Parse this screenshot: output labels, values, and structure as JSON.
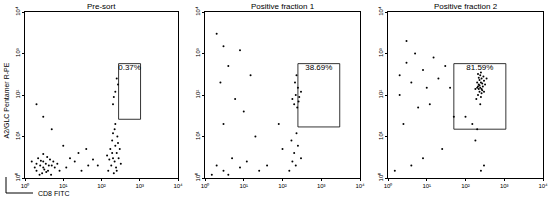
{
  "chart_data": [
    {
      "type": "scatter",
      "title": "Pre-sort",
      "color": "#000000",
      "marker": "dot",
      "log": true,
      "x_label": "CD8 FITC",
      "y_label": "A2/GLC Pentamer R-PE",
      "xlim": [
        1,
        10000
      ],
      "ylim": [
        1,
        10000
      ],
      "xticks": [
        {
          "value": 1,
          "label": "10⁰"
        },
        {
          "value": 10,
          "label": "10¹"
        },
        {
          "value": 100,
          "label": "10²"
        },
        {
          "value": 1000,
          "label": "10³"
        },
        {
          "value": 10000,
          "label": "10⁴"
        }
      ],
      "yticks": [
        {
          "value": 1,
          "label": "10⁰"
        },
        {
          "value": 10,
          "label": "10¹"
        },
        {
          "value": 100,
          "label": "10²"
        },
        {
          "value": 1000,
          "label": "10³"
        },
        {
          "value": 10000,
          "label": "10⁴"
        }
      ],
      "x": [
        2,
        2.5,
        3,
        3,
        2.2,
        4,
        3.5,
        4.5,
        5,
        2,
        2.8,
        3.8,
        6,
        5.5,
        1.8,
        3.2,
        4.2,
        2.6,
        7,
        8,
        1.5,
        3,
        4.8,
        2.4,
        3.6,
        12,
        20,
        30,
        45,
        15,
        60,
        25,
        80,
        10,
        40,
        150,
        180,
        200,
        220,
        250,
        170,
        190,
        230,
        260,
        210,
        240,
        280,
        300,
        200,
        160,
        220,
        270,
        190,
        320,
        140,
        230,
        250,
        200,
        230,
        250,
        210,
        270,
        3,
        5,
        2
      ],
      "values": [
        1.5,
        2,
        1.8,
        2.5,
        3,
        1.5,
        2.2,
        2.8,
        2,
        2.2,
        1.3,
        3.2,
        1.8,
        2.5,
        1.8,
        1.6,
        2,
        2.6,
        2.2,
        1.5,
        2.5,
        3.8,
        1.2,
        1.2,
        1.4,
        1.8,
        2.5,
        1.5,
        2,
        3,
        2.8,
        4,
        2,
        6,
        5,
        1.5,
        2,
        3,
        2.5,
        4,
        5,
        8,
        6,
        10,
        1.3,
        1.8,
        3,
        5,
        12,
        2.8,
        15,
        7,
        4,
        2.2,
        3.5,
        20,
        1.5,
        60,
        120,
        250,
        90,
        180,
        30,
        15,
        60
      ],
      "gate": {
        "x": [
          280,
          1050
        ],
        "y": [
          26,
          570
        ],
        "label": "0.37%"
      }
    },
    {
      "type": "scatter",
      "title": "Positive fraction 1",
      "color": "#000000",
      "marker": "dot",
      "log": true,
      "xlim": [
        1,
        10000
      ],
      "ylim": [
        1,
        10000
      ],
      "xticks": [
        {
          "value": 1,
          "label": "10⁰"
        },
        {
          "value": 10,
          "label": "10¹"
        },
        {
          "value": 100,
          "label": "10²"
        },
        {
          "value": 1000,
          "label": "10³"
        },
        {
          "value": 10000,
          "label": "10⁴"
        }
      ],
      "yticks": [
        {
          "value": 1,
          "label": "10⁰"
        },
        {
          "value": 10,
          "label": "10¹"
        },
        {
          "value": 100,
          "label": "10²"
        },
        {
          "value": 1000,
          "label": "10³"
        },
        {
          "value": 10000,
          "label": "10⁴"
        }
      ],
      "x": [
        1.5,
        2,
        3,
        5,
        8,
        12,
        25,
        40,
        4,
        2,
        3,
        4,
        2.5,
        6,
        10,
        15,
        8,
        3,
        20,
        150,
        180,
        200,
        220,
        250,
        300,
        170,
        230,
        200,
        220,
        250,
        180,
        270,
        210,
        240,
        300,
        230,
        260,
        100,
        80
      ],
      "values": [
        1.2,
        2,
        1.5,
        3,
        1.8,
        2.5,
        1.5,
        2,
        1.2,
        3000,
        1500,
        500,
        200,
        80,
        40,
        300,
        1200,
        20,
        10,
        1.5,
        2.5,
        4,
        2,
        6,
        3,
        8,
        12,
        60,
        100,
        150,
        80,
        90,
        200,
        50,
        120,
        300,
        70,
        5,
        20
      ],
      "gate": {
        "x": [
          250,
          3000
        ],
        "y": [
          17,
          570
        ],
        "label": "38.69%"
      }
    },
    {
      "type": "scatter",
      "title": "Positive fraction 2",
      "color": "#000000",
      "marker": "dot",
      "log": true,
      "xlim": [
        1,
        10000
      ],
      "ylim": [
        1,
        10000
      ],
      "xticks": [
        {
          "value": 1,
          "label": "10⁰"
        },
        {
          "value": 10,
          "label": "10¹"
        },
        {
          "value": 100,
          "label": "10²"
        },
        {
          "value": 1000,
          "label": "10³"
        },
        {
          "value": 10000,
          "label": "10⁴"
        }
      ],
      "yticks": [
        {
          "value": 1,
          "label": "10⁰"
        },
        {
          "value": 10,
          "label": "10¹"
        },
        {
          "value": 100,
          "label": "10²"
        },
        {
          "value": 1000,
          "label": "10³"
        },
        {
          "value": 10000,
          "label": "10⁴"
        }
      ],
      "x": [
        2,
        3,
        4,
        5,
        8,
        10,
        15,
        2,
        6,
        20,
        30,
        3,
        12,
        40,
        50,
        1.5,
        4,
        8,
        2.5,
        25,
        200,
        220,
        250,
        230,
        260,
        210,
        280,
        240,
        190,
        270,
        300,
        220,
        250,
        230,
        260,
        200,
        210,
        290,
        240,
        180,
        320,
        250,
        230,
        270,
        210,
        260,
        240,
        220,
        300,
        350,
        150,
        200,
        300,
        250,
        100,
        180
      ],
      "values": [
        300,
        600,
        200,
        1000,
        400,
        150,
        800,
        100,
        50,
        250,
        500,
        2000,
        60,
        150,
        30,
        1.5,
        2,
        3,
        20,
        5,
        150,
        180,
        200,
        120,
        250,
        100,
        160,
        300,
        80,
        130,
        220,
        260,
        90,
        170,
        140,
        200,
        320,
        280,
        60,
        140,
        180,
        350,
        230,
        190,
        160,
        110,
        150,
        140,
        120,
        250,
        20,
        15,
        2,
        1.5,
        30,
        8
      ],
      "gate": {
        "x": [
          50,
          1100
        ],
        "y": [
          15,
          570
        ],
        "label": "81.59%"
      }
    }
  ]
}
